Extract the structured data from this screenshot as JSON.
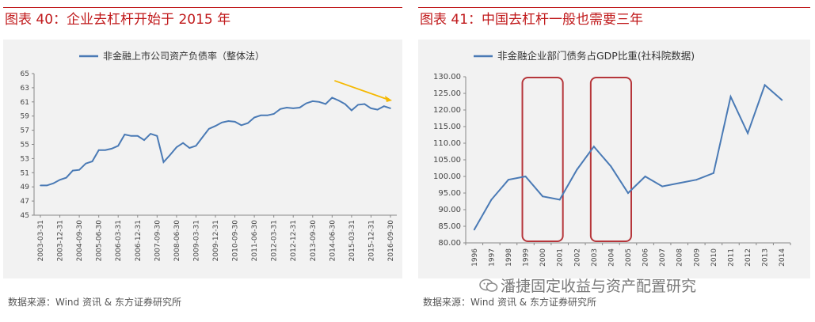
{
  "colors": {
    "accent": "#c0191b",
    "series": "#4a7ab5",
    "arrow": "#f5b800",
    "box": "#b6363b"
  },
  "left_panel": {
    "title": "图表 40：企业去杠杆开始于 2015 年",
    "source": "数据来源：Wind 资讯  &  东方证券研究所"
  },
  "right_panel": {
    "title": "图表 41：中国去杠杆一般也需要三年",
    "source": "数据来源：Wind 资讯  &  东方证券研究所"
  },
  "watermark": {
    "text": "潘捷固定收益与资产配置研究",
    "icon": "wechat-icon"
  },
  "chart_data": [
    {
      "type": "line",
      "title": "",
      "legend": "非金融上市公司资产负债率（整体法）",
      "legend_position": "top-center",
      "ylim": [
        45,
        65
      ],
      "yticks": [
        "45",
        "47",
        "49",
        "51",
        "53",
        "55",
        "57",
        "59",
        "61",
        "63",
        "65"
      ],
      "xtick_labels": [
        "2003-03-31",
        "2003-12-31",
        "2004-09-30",
        "2005-06-30",
        "2006-03-31",
        "2006-12-31",
        "2007-09-30",
        "2008-06-30",
        "2009-03-31",
        "2009-12-31",
        "2010-09-30",
        "2011-06-30",
        "2012-03-31",
        "2012-12-31",
        "2013-09-30",
        "2014-06-30",
        "2015-03-31",
        "2015-12-31",
        "2016-09-30"
      ],
      "values": [
        49.2,
        49.2,
        49.5,
        50.0,
        50.3,
        51.3,
        51.4,
        52.3,
        52.6,
        54.2,
        54.2,
        54.4,
        54.8,
        56.4,
        56.2,
        56.2,
        55.6,
        56.5,
        56.2,
        52.5,
        53.5,
        54.6,
        55.2,
        54.5,
        54.8,
        56.0,
        57.2,
        57.6,
        58.1,
        58.3,
        58.2,
        57.7,
        58.0,
        58.8,
        59.1,
        59.1,
        59.3,
        60.0,
        60.2,
        60.1,
        60.2,
        60.8,
        61.1,
        61.0,
        60.7,
        61.6,
        61.2,
        60.7,
        59.8,
        60.6,
        60.7,
        60.1,
        59.9,
        60.4,
        60.1
      ],
      "annotation": "downward trend arrow from 2014-12 to 2016-09"
    },
    {
      "type": "line",
      "title": "",
      "legend": "非金融企业部门债务占GDP比重(社科院数据)",
      "legend_position": "top-center",
      "ylim": [
        80,
        130
      ],
      "yticks": [
        "80.00",
        "85.00",
        "90.00",
        "95.00",
        "100.00",
        "105.00",
        "110.00",
        "115.00",
        "120.00",
        "125.00",
        "130.00"
      ],
      "x": [
        "1996",
        "1997",
        "1998",
        "1999",
        "2000",
        "2001",
        "2002",
        "2003",
        "2004",
        "2005",
        "2006",
        "2007",
        "2008",
        "2009",
        "2010",
        "2011",
        "2012",
        "2013",
        "2014"
      ],
      "values": [
        84,
        93,
        99,
        100,
        94,
        93,
        102,
        109,
        103,
        95,
        100,
        97,
        98,
        99,
        101,
        124,
        113,
        127.5,
        123
      ],
      "highlight_boxes": [
        [
          "1999",
          "2001"
        ],
        [
          "2003",
          "2005"
        ]
      ]
    }
  ]
}
